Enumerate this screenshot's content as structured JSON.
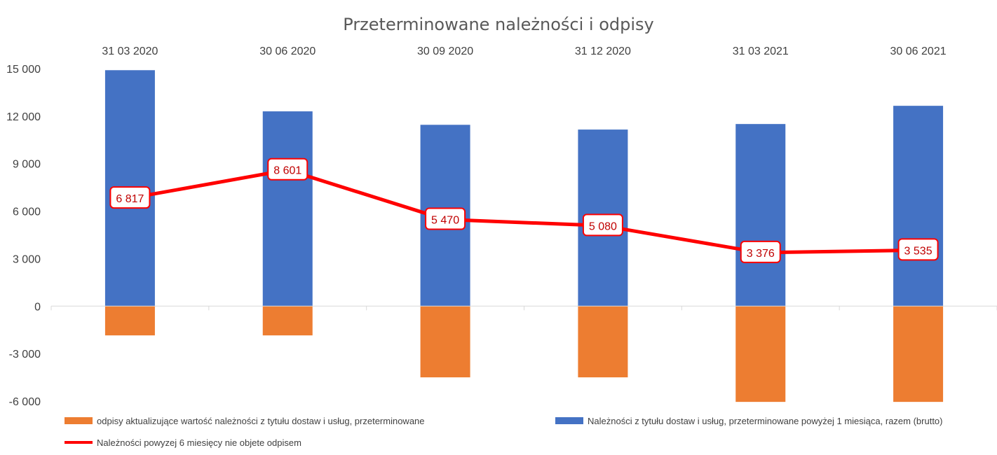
{
  "chart_data": {
    "type": "bar",
    "title": "Przeterminowane należności i odpisy",
    "categories": [
      "31 03 2020",
      "30 06 2020",
      "30 09 2020",
      "31 12 2020",
      "31 03 2021",
      "30 06 2021"
    ],
    "ylim": [
      -6000,
      15000
    ],
    "yticks": [
      15000,
      12000,
      9000,
      6000,
      3000,
      0,
      -3000,
      -6000
    ],
    "ytick_labels": [
      "15 000",
      "12 000",
      "9 000",
      "6 000",
      "3 000",
      "0",
      "-3 000",
      "-6 000"
    ],
    "grid": false,
    "series": [
      {
        "name": "Należności z tytułu dostaw i usług, przeterminowane powyżej 1 miesiąca, razem (brutto)",
        "kind": "bar",
        "color": "#4472c4",
        "values": [
          14900,
          12300,
          11450,
          11150,
          11500,
          12650
        ]
      },
      {
        "name": "odpisy aktualizujące wartość należności z tytułu dostaw i usług, przeterminowane",
        "kind": "bar",
        "color": "#ed7d31",
        "values": [
          -1850,
          -1850,
          -4500,
          -4500,
          -6050,
          -6050
        ]
      },
      {
        "name": "Należności powyzej 6 miesięcy nie objete odpisem",
        "kind": "line",
        "color": "#ff0000",
        "values": [
          6817,
          8601,
          5470,
          5080,
          3376,
          3535
        ],
        "labels": [
          "6 817",
          "8 601",
          "5 470",
          "5 080",
          "3 376",
          "3 535"
        ]
      }
    ],
    "legend": "bottom"
  }
}
